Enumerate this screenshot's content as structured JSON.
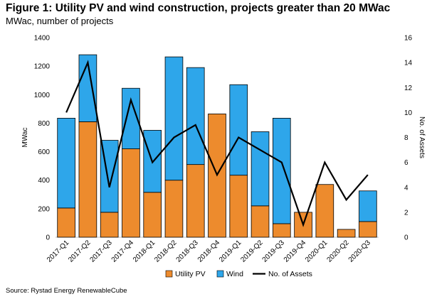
{
  "title": "Figure 1: Utility PV and wind construction, projects greater than 20 MWac",
  "subtitle": "MWac, number of projects",
  "source": "Source: Rystad Energy RenewableCube",
  "colors": {
    "utility_pv": "#ED8B2D",
    "wind": "#2EA6EA",
    "assets_line": "#000000",
    "bar_outline": "#000000"
  },
  "chart_data": {
    "type": "bar",
    "stacked": true,
    "categories": [
      "2017-Q1",
      "2017-Q2",
      "2017-Q3",
      "2017-Q4",
      "2018-Q1",
      "2018-Q2",
      "2018-Q3",
      "2018-Q4",
      "2019-Q1",
      "2019-Q2",
      "2019-Q3",
      "2019-Q4",
      "2020-Q1",
      "2020-Q2",
      "2020-Q3"
    ],
    "series": [
      {
        "name": "Utility PV",
        "type": "bar",
        "axis": "left",
        "values": [
          205,
          810,
          175,
          620,
          315,
          400,
          510,
          865,
          435,
          220,
          95,
          175,
          370,
          55,
          110
        ]
      },
      {
        "name": "Wind",
        "type": "bar",
        "axis": "left",
        "values": [
          630,
          470,
          505,
          425,
          435,
          865,
          680,
          0,
          635,
          520,
          740,
          0,
          0,
          0,
          215
        ]
      },
      {
        "name": "No. of Assets",
        "type": "line",
        "axis": "right",
        "values": [
          10,
          14,
          4,
          11,
          6,
          8,
          9,
          5,
          8,
          7,
          6,
          1,
          6,
          3,
          5
        ]
      }
    ],
    "ylabel": "MWac",
    "y2label": "No. of Assets",
    "ylim": [
      0,
      1400
    ],
    "y2lim": [
      0,
      16
    ],
    "yticks": [
      "0",
      "200",
      "400",
      "600",
      "800",
      "1000",
      "1200",
      "1400"
    ],
    "y2ticks": [
      "0",
      "2",
      "4",
      "6",
      "8",
      "10",
      "12",
      "14",
      "16"
    ],
    "grid": false,
    "legend": "bottom"
  }
}
